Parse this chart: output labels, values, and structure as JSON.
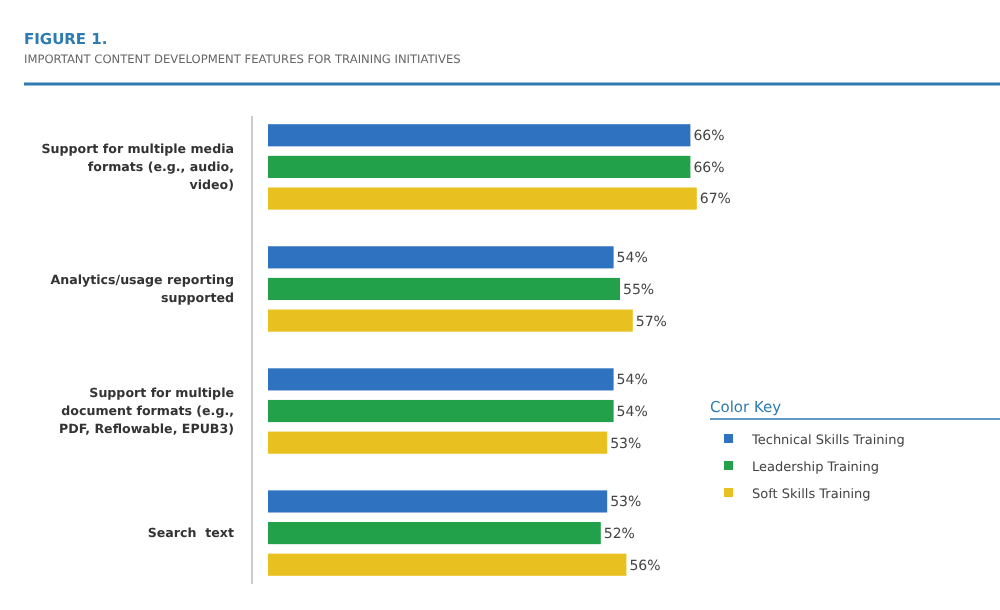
{
  "chart_data": {
    "type": "bar",
    "orientation": "horizontal",
    "title": "FIGURE 1.",
    "subtitle": "IMPORTANT CONTENT DEVELOPMENT FEATURES FOR TRAINING INITIATIVES",
    "categories": [
      "Support for multiple media formats (e.g., audio, video)",
      "Analytics/usage reporting supported",
      "Support for multiple document formats (e.g., PDF, Reflowable, EPUB3)",
      "Search  text"
    ],
    "series": [
      {
        "name": "Technical Skills Training",
        "color": "#2f72c0",
        "values": [
          66,
          54,
          54,
          53
        ],
        "value_labels": [
          "66%",
          "54%",
          "54%",
          "53%"
        ]
      },
      {
        "name": "Leadership Training",
        "color": "#22a04a",
        "values": [
          66,
          55,
          54,
          52
        ],
        "value_labels": [
          "66%",
          "55%",
          "54%",
          "52%"
        ]
      },
      {
        "name": "Soft Skills Training",
        "color": "#e8c020",
        "values": [
          67,
          57,
          53,
          56
        ],
        "value_labels": [
          "67%",
          "57%",
          "53%",
          "56%"
        ]
      }
    ],
    "tick_labels": "y",
    "legend": "right",
    "legend_title": "Color Key"
  }
}
